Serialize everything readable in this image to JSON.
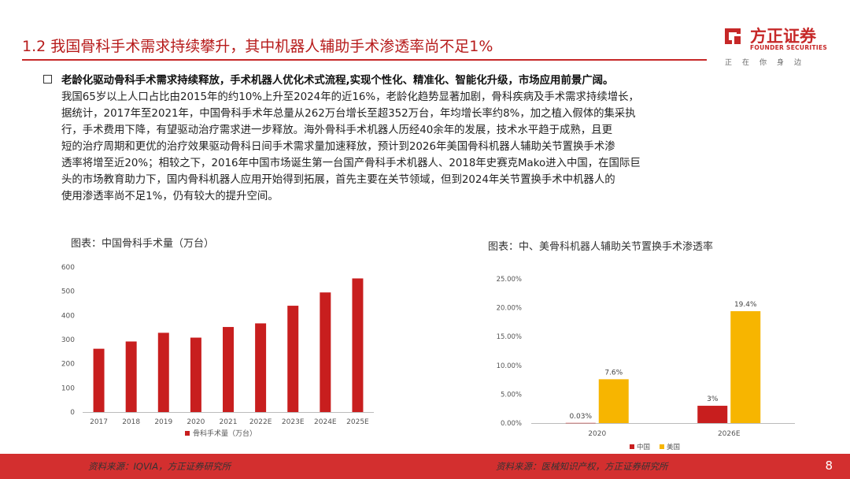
{
  "header": {
    "title": "1.2 我国骨科手术需求持续攀升，其中机器人辅助手术渗透率尚不足1%",
    "logo_name": "方正证券",
    "logo_en": "FOUNDER SECURITIES",
    "logo_slogan": "正在你身边"
  },
  "summary": {
    "lead": "老龄化驱动骨科手术需求持续释放，手术机器人优化术式流程,实现个性化、精准化、智能化升级，市场应用前景广阔。",
    "lines": [
      "我国65岁以上人口占比由2015年的约10%上升至2024年的近16%，老龄化趋势显著加剧，骨科疾病及手术需求持续增长，",
      "据统计，2017年至2021年，中国骨科手术年总量从262万台增长至超352万台，年均增长率约8%，加之植入假体的集采执",
      "行，手术费用下降，有望驱动治疗需求进一步释放。海外骨科手术机器人历经40余年的发展，技术水平趋于成熟，且更",
      "短的治疗周期和更优的治疗效果驱动骨科日间手术需求量加速释放，预计到2026年美国骨科机器人辅助关节置换手术渗",
      "透率将增至近20%；相较之下，2016年中国市场诞生第一台国产骨科手术机器人、2018年史赛克Mako进入中国，在国际巨",
      "头的市场教育助力下，国内骨科机器人应用开始得到拓展，首先主要在关节领域，但到2024年关节置换手术中机器人的",
      "使用渗透率尚不足1%，仍有较大的提升空间。"
    ]
  },
  "chart_data": [
    {
      "type": "bar",
      "title": "图表：中国骨科手术量（万台）",
      "categories": [
        "2017",
        "2018",
        "2019",
        "2020",
        "2021",
        "2022E",
        "2023E",
        "2024E",
        "2025E"
      ],
      "series": [
        {
          "name": "骨科手术量（万台）",
          "values": [
            262,
            292,
            328,
            308,
            352,
            367,
            440,
            495,
            553
          ]
        }
      ],
      "ylim": [
        0,
        600
      ],
      "yticks": [
        "0",
        "100",
        "200",
        "300",
        "400",
        "500",
        "600"
      ],
      "legend": "bottom",
      "colors": {
        "bar": "#c81e1e"
      }
    },
    {
      "type": "bar",
      "title": "图表：中、美骨科机器人辅助关节置换手术渗透率",
      "categories": [
        "2020",
        "2026E"
      ],
      "series": [
        {
          "name": "中国",
          "values": [
            0.03,
            3
          ],
          "labels": [
            "0.03%",
            "3%"
          ]
        },
        {
          "name": "美国",
          "values": [
            7.6,
            19.4
          ],
          "labels": [
            "7.6%",
            "19.4%"
          ]
        }
      ],
      "ylim": [
        0,
        25
      ],
      "yticks": [
        "0.00%",
        "5.00%",
        "10.00%",
        "15.00%",
        "20.00%",
        "25.00%"
      ],
      "legend": "bottom",
      "colors": {
        "中国": "#c81e1e",
        "美国": "#f7b500"
      }
    }
  ],
  "footer": {
    "source_left": "资料来源：IQVIA，方正证券研究所",
    "source_right": "资料来源：医械知识产权，方正证券研究所",
    "page": "8"
  }
}
